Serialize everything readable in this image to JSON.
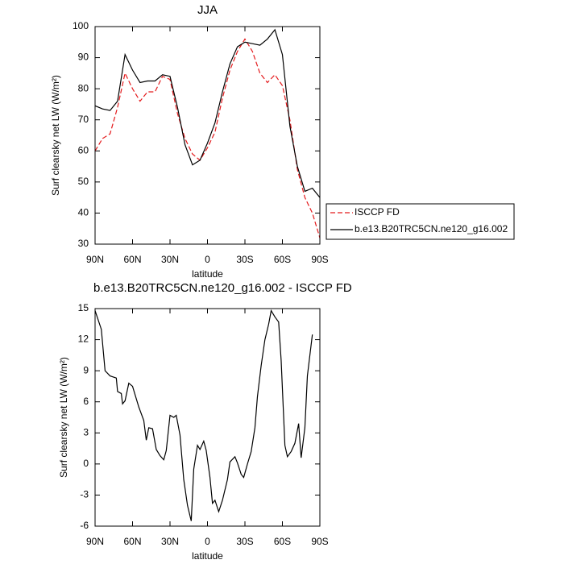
{
  "chart_data": [
    {
      "type": "line",
      "title": "JJA",
      "x_label": "latitude",
      "y_label": "Surf clearsky net LW (W/m²)",
      "xlim": [
        90,
        -90
      ],
      "xticks": [
        {
          "value": 90,
          "label": "90N"
        },
        {
          "value": 60,
          "label": "60N"
        },
        {
          "value": 30,
          "label": "30N"
        },
        0,
        {
          "value": -30,
          "label": "30S"
        },
        {
          "value": -60,
          "label": "60S"
        },
        {
          "value": -90,
          "label": "90S"
        }
      ],
      "ylim": [
        30,
        100
      ],
      "yticks": [
        30,
        40,
        50,
        60,
        70,
        80,
        90,
        100
      ],
      "legend": "right",
      "series": [
        {
          "name": "ISCCP FD",
          "color": "#e41a1c",
          "dash": true,
          "x": [
            90,
            84,
            78,
            72,
            66,
            60,
            54,
            48,
            42,
            36,
            30,
            24,
            18,
            12,
            6,
            0,
            -6,
            -12,
            -18,
            -24,
            -30,
            -36,
            -42,
            -48,
            -54,
            -60,
            -66,
            -72,
            -78,
            -84,
            -90
          ],
          "values": [
            60,
            64,
            65.5,
            74,
            85,
            80,
            76,
            79,
            79,
            84,
            83,
            72,
            64,
            59,
            57,
            61,
            66,
            77,
            86,
            92,
            96,
            92,
            85,
            82,
            84.5,
            81,
            70,
            54,
            45,
            40,
            32
          ]
        },
        {
          "name": "b.e13.B20TRC5CN.ne120_g16.002",
          "color": "#000000",
          "dash": false,
          "x": [
            90,
            84,
            78,
            72,
            66,
            60,
            54,
            48,
            42,
            36,
            30,
            24,
            18,
            12,
            6,
            0,
            -6,
            -12,
            -18,
            -24,
            -30,
            -36,
            -42,
            -48,
            -54,
            -60,
            -66,
            -72,
            -78,
            -84,
            -90
          ],
          "values": [
            74.5,
            73.5,
            73,
            76,
            91,
            86,
            82,
            82.5,
            82.5,
            84.5,
            84,
            74,
            62,
            55.5,
            57,
            62.5,
            69,
            79,
            88,
            93.5,
            95,
            94.5,
            94,
            96,
            99,
            91,
            68,
            55,
            47,
            48,
            45
          ]
        }
      ]
    },
    {
      "type": "line",
      "title": "b.e13.B20TRC5CN.ne120_g16.002 - ISCCP FD",
      "x_label": "latitude",
      "y_label": "Surf clearsky net LW (W/m²)",
      "xlim": [
        90,
        -90
      ],
      "xticks": [
        {
          "value": 90,
          "label": "90N"
        },
        {
          "value": 60,
          "label": "60N"
        },
        {
          "value": 30,
          "label": "30N"
        },
        0,
        {
          "value": -30,
          "label": "30S"
        },
        {
          "value": -60,
          "label": "60S"
        },
        {
          "value": -90,
          "label": "90S"
        }
      ],
      "ylim": [
        -6,
        15
      ],
      "yticks": [
        -6,
        -3,
        0,
        3,
        6,
        9,
        12,
        15
      ],
      "series": [
        {
          "color": "#000000",
          "dash": false,
          "x": [
            90,
            85,
            82,
            78,
            73,
            72,
            69,
            68,
            66,
            63,
            60,
            55,
            51,
            49,
            47,
            44,
            41,
            38,
            35,
            33,
            30,
            27,
            25,
            22,
            19,
            16,
            13,
            11,
            8,
            6,
            3,
            1,
            -2,
            -4,
            -6,
            -9,
            -12,
            -16,
            -18,
            -22,
            -24,
            -27,
            -29,
            -32,
            -35,
            -38,
            -40,
            -43,
            -46,
            -49,
            -51,
            -54,
            -57,
            -59,
            -62,
            -64,
            -67,
            -70,
            -73,
            -75,
            -78,
            -80,
            -84
          ],
          "values": [
            14.8,
            13,
            9,
            8.5,
            8.3,
            7,
            6.8,
            5.8,
            6.1,
            7.8,
            7.5,
            5.5,
            4.2,
            2.3,
            3.5,
            3.4,
            1.4,
            0.8,
            0.4,
            1.3,
            4.7,
            4.5,
            4.7,
            2.8,
            -1.5,
            -4,
            -5.5,
            -0.5,
            1.8,
            1.4,
            2.2,
            1.3,
            -1.3,
            -3.8,
            -3.5,
            -4.6,
            -3.5,
            -1.5,
            0.2,
            0.7,
            0.1,
            -1,
            -1.3,
            0,
            1.2,
            3.5,
            6.5,
            9.5,
            12,
            13.5,
            14.8,
            14.2,
            13.7,
            10,
            1.8,
            0.7,
            1.2,
            2,
            3.9,
            0.6,
            3.5,
            8.5,
            12.5
          ]
        }
      ]
    }
  ]
}
